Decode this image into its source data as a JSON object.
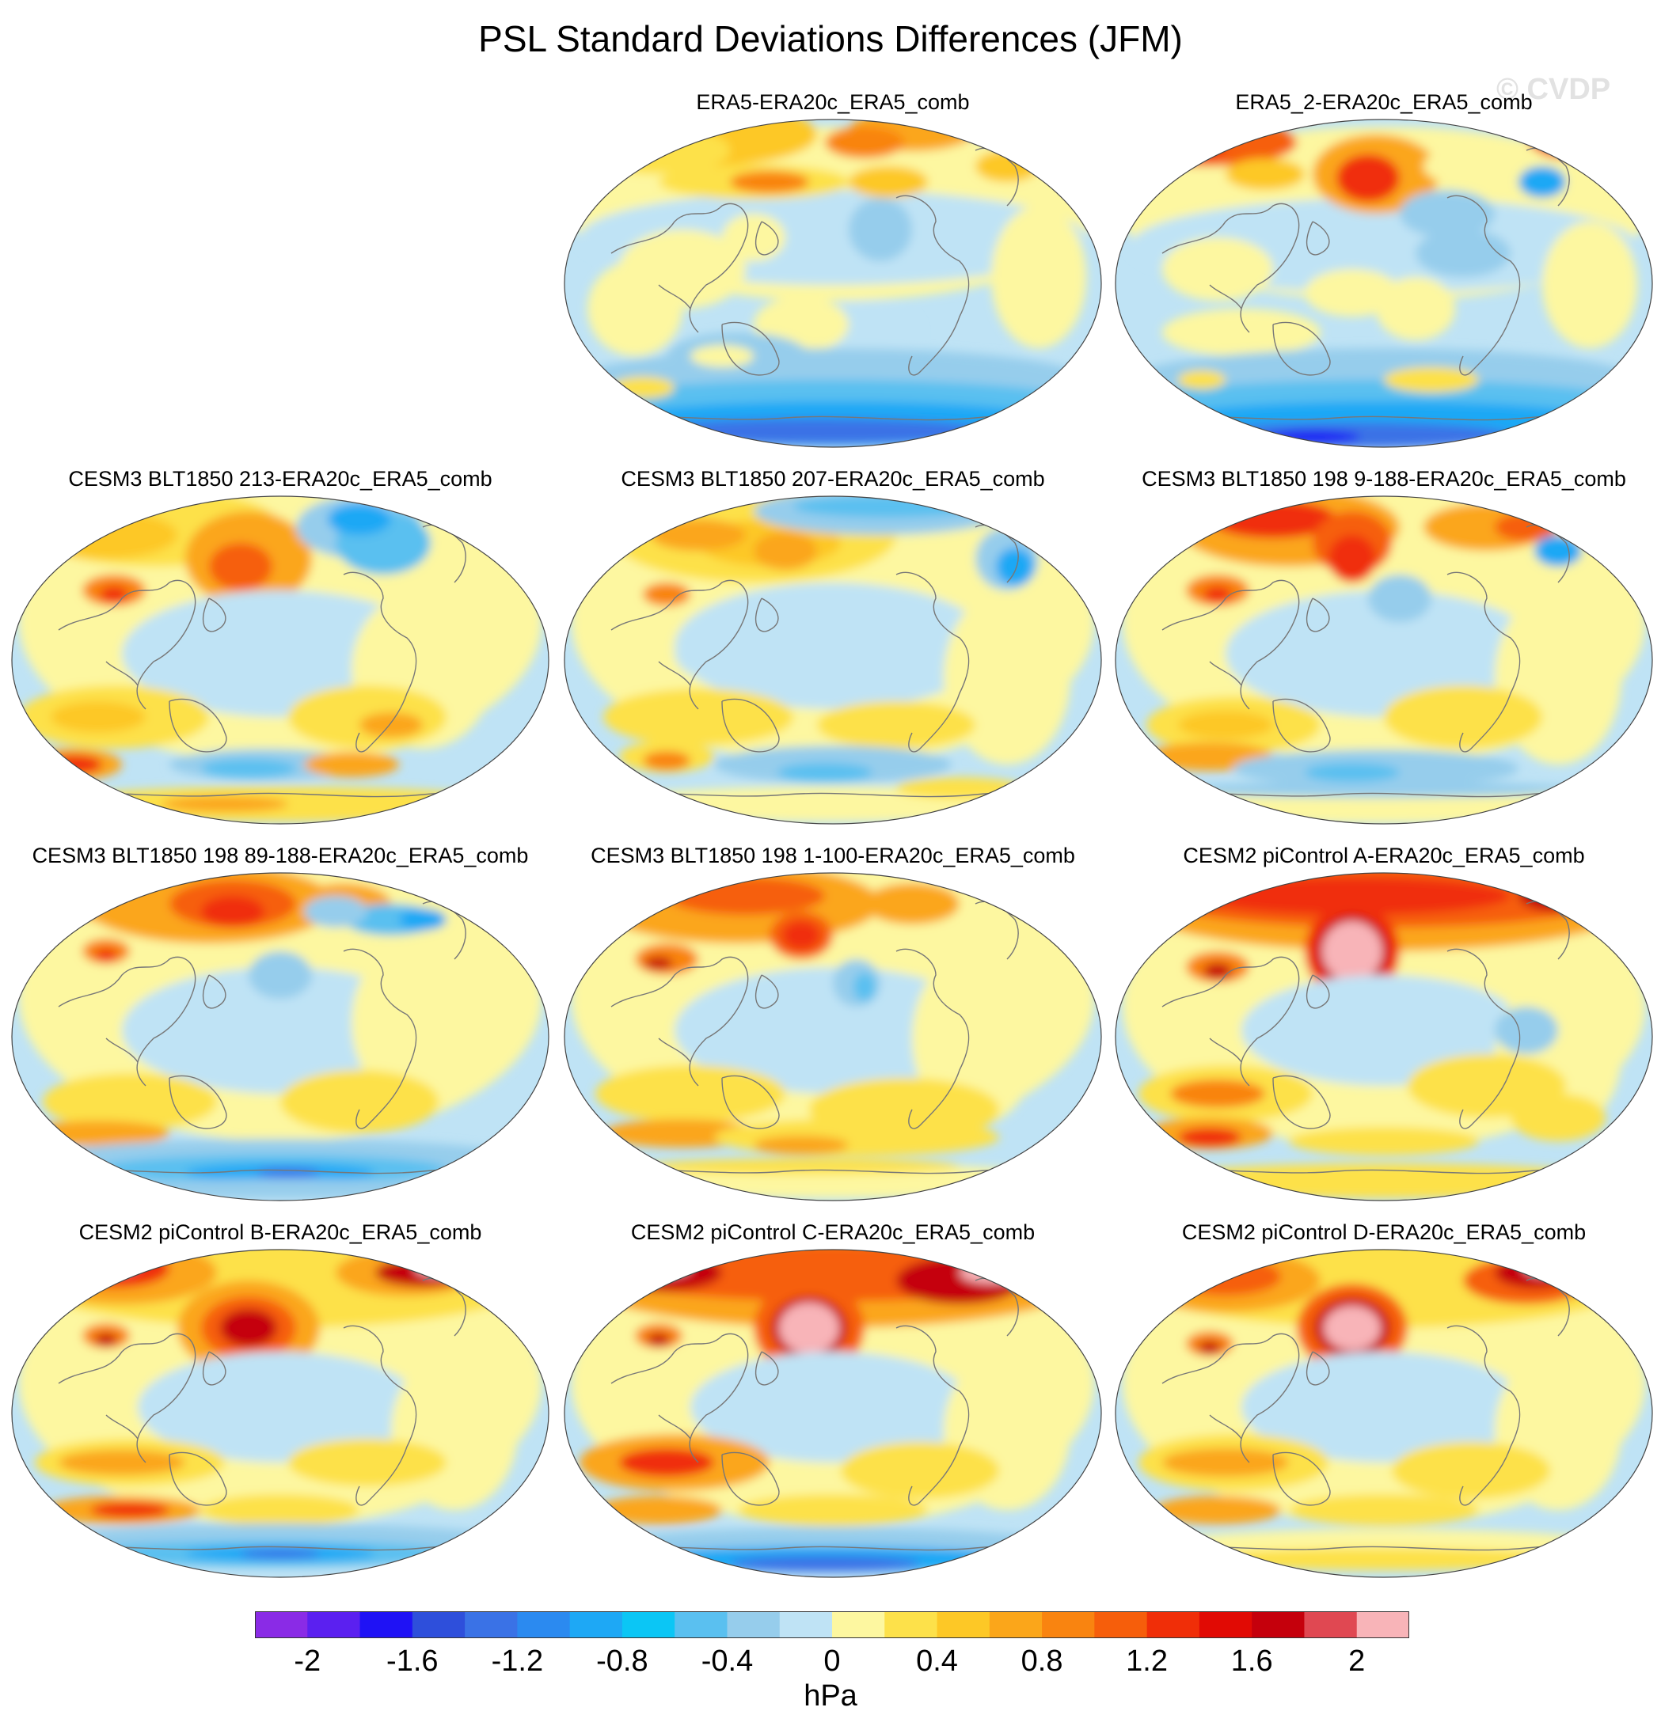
{
  "title": "PSL Standard Deviations Differences (JFM)",
  "watermark": "© CVDP",
  "panels": [
    {
      "id": "era5",
      "label": "ERA5-ERA20c_ERA5_comb",
      "row": 0,
      "col": 1,
      "style": "obs1"
    },
    {
      "id": "era5_2",
      "label": "ERA5_2-ERA20c_ERA5_comb",
      "row": 0,
      "col": 2,
      "style": "obs2"
    },
    {
      "id": "blt213",
      "label": "CESM3 BLT1850 213-ERA20c_ERA5_comb",
      "row": 1,
      "col": 0,
      "style": "mod1"
    },
    {
      "id": "blt207",
      "label": "CESM3 BLT1850 207-ERA20c_ERA5_comb",
      "row": 1,
      "col": 1,
      "style": "mod2"
    },
    {
      "id": "blt198_9",
      "label": "CESM3 BLT1850 198 9-188-ERA20c_ERA5_comb",
      "row": 1,
      "col": 2,
      "style": "mod3"
    },
    {
      "id": "blt198_89",
      "label": "CESM3 BLT1850 198 89-188-ERA20c_ERA5_comb",
      "row": 2,
      "col": 0,
      "style": "mod4"
    },
    {
      "id": "blt198_1",
      "label": "CESM3 BLT1850 198 1-100-ERA20c_ERA5_comb",
      "row": 2,
      "col": 1,
      "style": "mod5"
    },
    {
      "id": "picA",
      "label": "CESM2 piControl A-ERA20c_ERA5_comb",
      "row": 2,
      "col": 2,
      "style": "picA"
    },
    {
      "id": "picB",
      "label": "CESM2 piControl B-ERA20c_ERA5_comb",
      "row": 3,
      "col": 0,
      "style": "picB"
    },
    {
      "id": "picC",
      "label": "CESM2 piControl C-ERA20c_ERA5_comb",
      "row": 3,
      "col": 1,
      "style": "picC"
    },
    {
      "id": "picD",
      "label": "CESM2 piControl D-ERA20c_ERA5_comb",
      "row": 3,
      "col": 2,
      "style": "picD"
    }
  ],
  "colorbar": {
    "units": "hPa",
    "tick_labels": [
      "-2",
      "-1.6",
      "-1.2",
      "-0.8",
      "-0.4",
      "0",
      "0.4",
      "0.8",
      "1.2",
      "1.6",
      "2"
    ],
    "tick_values": [
      -2,
      -1.6,
      -1.2,
      -0.8,
      -0.4,
      0,
      0.4,
      0.8,
      1.2,
      1.6,
      2
    ],
    "colors": [
      "#8a2be6",
      "#5b20f0",
      "#1f12f5",
      "#2e4fdb",
      "#3a72e6",
      "#2b8af0",
      "#1ea8f5",
      "#0bc6f5",
      "#5ac0f0",
      "#96cdec",
      "#bfe3f5",
      "#fdf7a0",
      "#fde14a",
      "#fdc826",
      "#fba61a",
      "#f98410",
      "#f65e0b",
      "#f02e08",
      "#e10a04",
      "#c5000c",
      "#e04852",
      "#f8b4b8"
    ]
  }
}
